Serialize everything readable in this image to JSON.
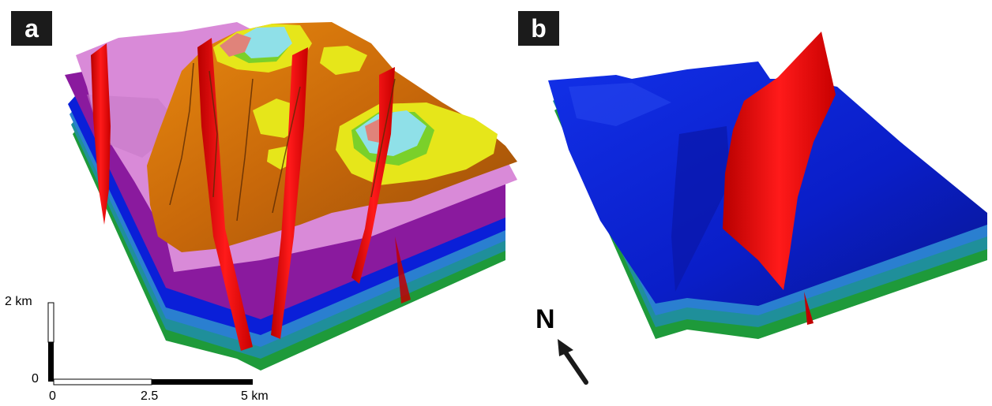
{
  "panels": [
    {
      "label": "a"
    },
    {
      "label": "b"
    }
  ],
  "scale_bar": {
    "vertical_top_label": "2 km",
    "vertical_bottom_label": "0",
    "horizontal_labels": [
      "0",
      "2.5",
      "5 km"
    ]
  },
  "north_arrow": {
    "label": "N",
    "icon": "north-arrow-icon"
  },
  "colors": {
    "green": "#1e9a3a",
    "teal": "#1f8f9a",
    "light_blue": "#2a7fd0",
    "blue": "#0a1fd8",
    "purple": "#8a1a9e",
    "pink": "#d98ad8",
    "orange": "#d9770a",
    "yellow": "#e6e61a",
    "cyan": "#8fe0e8",
    "salmon": "#e0837a",
    "fault_red": "#e00000"
  }
}
